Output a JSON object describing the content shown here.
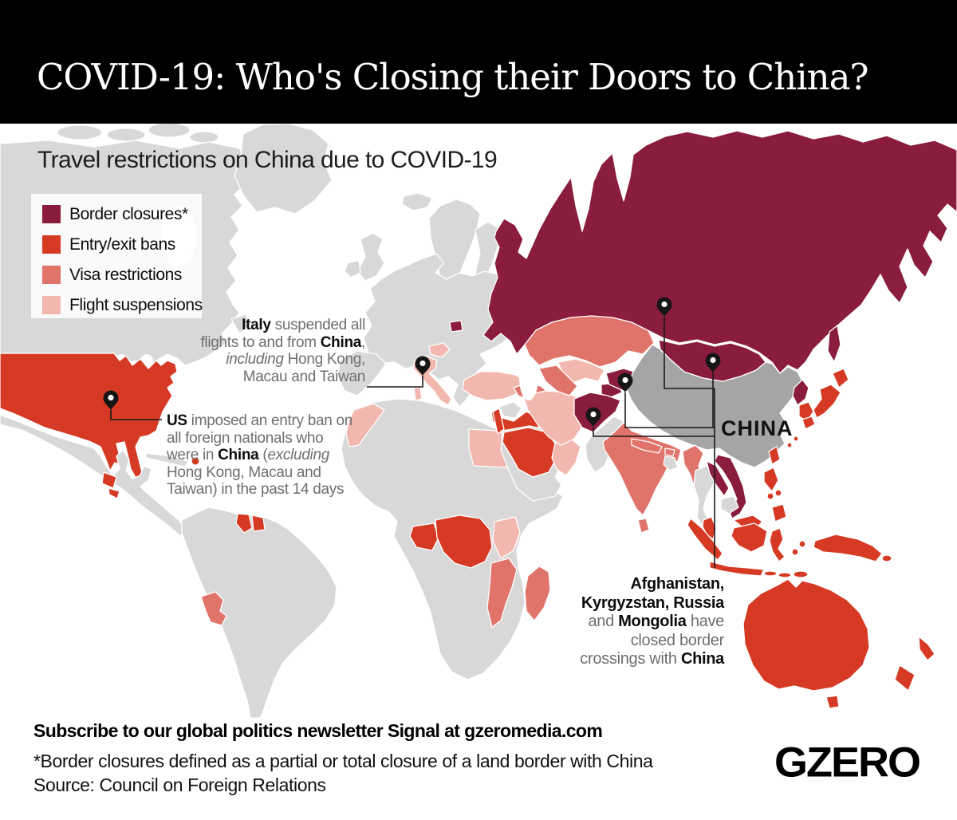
{
  "header": {
    "title": "COVID-19: Who's Closing their Doors to China?"
  },
  "subtitle": "Travel restrictions on China due to COVID-19",
  "legend": {
    "items": [
      {
        "id": "border_closure",
        "label": "Border closures*",
        "color": "#8a1c3d"
      },
      {
        "id": "entry_exit_ban",
        "label": "Entry/exit bans",
        "color": "#d73a24"
      },
      {
        "id": "visa_restriction",
        "label": "Visa restrictions",
        "color": "#e0736a"
      },
      {
        "id": "flight_suspension",
        "label": "Flight suspensions",
        "color": "#f2b7af"
      }
    ]
  },
  "map": {
    "china_label": "CHINA",
    "colors": {
      "ocean": "#ffffff",
      "land": "#d8d8d8",
      "china_land": "#a5a5a5",
      "border_closure": "#8a1c3d",
      "entry_exit_ban": "#d73a24",
      "visa_restriction": "#e0736a",
      "flight_suspension": "#f2b7af"
    },
    "regions": {
      "canada": "land",
      "arctic-islands": "land",
      "greenland": "land",
      "newfoundland": "land",
      "united-states": "entry_exit_ban",
      "mexico-central-america": "land",
      "guatemala": "entry_exit_ban",
      "el-salvador": "entry_exit_ban",
      "cuba": "land",
      "dominican-republic": "entry_exit_ban",
      "south-america": "land",
      "guyana": "entry_exit_ban",
      "suriname": "entry_exit_ban",
      "paraguay": "visa_restriction",
      "iceland": "land",
      "uk": "land",
      "ireland": "land",
      "scandinavia": "land",
      "finland": "land",
      "baltics": "land",
      "europe": "land",
      "iberia": "land",
      "italy": "flight_suspension",
      "czechia": "flight_suspension",
      "kaliningrad": "border_closure",
      "africa": "land",
      "morocco": "flight_suspension",
      "egypt": "flight_suspension",
      "gabon": "entry_exit_ban",
      "dr-congo": "entry_exit_ban",
      "kenya": "flight_suspension",
      "mozambique": "visa_restriction",
      "madagascar": "visa_restriction",
      "turkey": "flight_suspension",
      "syria": "land",
      "iraq-levant": "entry_exit_ban",
      "arabia": "land",
      "saudi-arabia": "entry_exit_ban",
      "oman-uae": "flight_suspension",
      "iran": "flight_suspension",
      "caucasus": "visa_restriction",
      "kazakhstan": "visa_restriction",
      "uzbekistan": "flight_suspension",
      "turkmenistan": "visa_restriction",
      "tajikistan": "border_closure",
      "kyrgyzstan": "border_closure",
      "afghanistan": "border_closure",
      "pakistan": "land",
      "russia": "border_closure",
      "sakhalin": "border_closure",
      "mongolia": "border_closure",
      "china": "china_land",
      "north-korea": "border_closure",
      "south-korea": "entry_exit_ban",
      "japan": "entry_exit_ban",
      "taiwan": "entry_exit_ban",
      "india": "visa_restriction",
      "nepal": "visa_restriction",
      "bhutan": "visa_restriction",
      "bangladesh": "land",
      "sri-lanka": "visa_restriction",
      "myanmar": "visa_restriction",
      "thailand": "land",
      "laos": "border_closure",
      "vietnam": "border_closure",
      "cambodia": "land",
      "malaysia": "entry_exit_ban",
      "singapore": "entry_exit_ban",
      "indonesia": "entry_exit_ban",
      "philippines": "entry_exit_ban",
      "papua-new-guinea": "entry_exit_ban",
      "australia": "entry_exit_ban",
      "new-zealand": "entry_exit_ban"
    }
  },
  "annotations": {
    "italy": {
      "lines": [
        [
          {
            "t": "Italy",
            "b": 1
          },
          {
            "t": " suspended all"
          }
        ],
        [
          {
            "t": "flights to and from "
          },
          {
            "t": "China",
            "b": 1
          },
          {
            "t": ","
          }
        ],
        [
          {
            "t": "including",
            "i": 1
          },
          {
            "t": " Hong Kong,"
          }
        ],
        [
          {
            "t": "Macau and Taiwan"
          }
        ]
      ]
    },
    "us": {
      "lines": [
        [
          {
            "t": "US",
            "b": 1
          },
          {
            "t": " imposed an entry ban on"
          }
        ],
        [
          {
            "t": "all foreign nationals who"
          }
        ],
        [
          {
            "t": "were in "
          },
          {
            "t": "China",
            "b": 1
          },
          {
            "t": " ("
          },
          {
            "t": "excluding",
            "i": 1
          }
        ],
        [
          {
            "t": "Hong Kong, Macau and"
          }
        ],
        [
          {
            "t": "Taiwan)  in the past 14 days"
          }
        ]
      ]
    },
    "asia": {
      "lines": [
        [
          {
            "t": "Afghanistan,",
            "b": 1
          }
        ],
        [
          {
            "t": "Kyrgyzstan, Russia",
            "b": 1
          }
        ],
        [
          {
            "t": "and "
          },
          {
            "t": "Mongolia",
            "b": 1
          },
          {
            "t": " have"
          }
        ],
        [
          {
            "t": "closed border"
          }
        ],
        [
          {
            "t": "crossings with "
          },
          {
            "t": "China",
            "b": 1
          }
        ]
      ]
    }
  },
  "footer": {
    "subscribe": "Subscribe to our global politics newsletter Signal at gzeromedia.com",
    "footnote": "*Border closures defined as a partial or total closure of a land border with China",
    "source": "Source: Council on Foreign Relations",
    "logo": "GZERO"
  }
}
